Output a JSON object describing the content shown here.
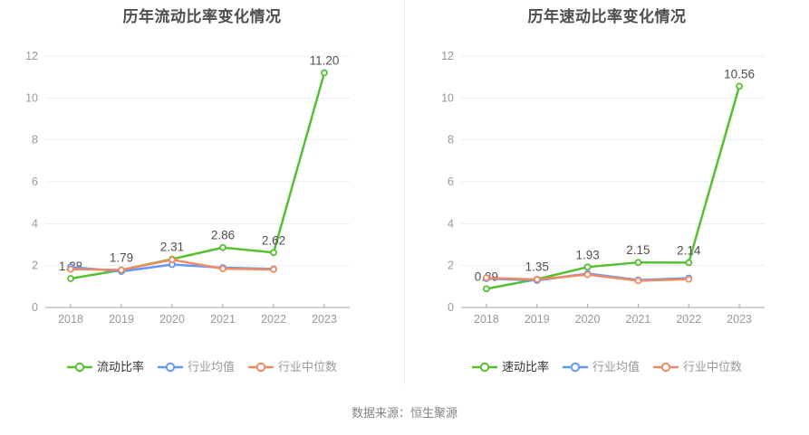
{
  "page": {
    "source_note": "数据来源：恒生聚源"
  },
  "colors": {
    "green": "#55c131",
    "blue": "#6397fa",
    "orange": "#f18a62",
    "gridline": "#e8eef6",
    "axis_line": "#9aa4ae",
    "axis_label": "#999999",
    "title": "#4e4e4e",
    "value_label": "#4f4f4f",
    "legend_active_text": "#333333",
    "legend_muted_text": "#999999",
    "divider": "#ececec",
    "source_text": "#828282"
  },
  "chart_data": [
    {
      "type": "line",
      "title": "历年流动比率变化情况",
      "categories": [
        "2018",
        "2019",
        "2020",
        "2021",
        "2022",
        "2023"
      ],
      "xlabel": "",
      "ylabel": "",
      "ylim": [
        0,
        12
      ],
      "yticks": [
        0,
        2,
        4,
        6,
        8,
        10,
        12
      ],
      "grid": "horizontal-gridlines",
      "legend_position": "bottom",
      "series": [
        {
          "name": "流动比率",
          "color_key": "green",
          "marker": "hollow-circle",
          "values": [
            1.38,
            1.79,
            2.31,
            2.86,
            2.62,
            11.2
          ],
          "point_labels": [
            "1.38",
            "1.79",
            "2.31",
            "2.86",
            "2.62",
            "11.20"
          ],
          "legend_text": "active"
        },
        {
          "name": "行业均值",
          "color_key": "blue",
          "marker": "hollow-circle",
          "values": [
            1.93,
            1.72,
            2.05,
            1.9,
            1.84,
            null
          ],
          "point_labels": null,
          "legend_text": "muted"
        },
        {
          "name": "行业中位数",
          "color_key": "orange",
          "marker": "hollow-circle",
          "values": [
            1.83,
            1.79,
            2.28,
            1.85,
            1.82,
            null
          ],
          "point_labels": null,
          "legend_text": "muted"
        }
      ]
    },
    {
      "type": "line",
      "title": "历年速动比率变化情况",
      "categories": [
        "2018",
        "2019",
        "2020",
        "2021",
        "2022",
        "2023"
      ],
      "xlabel": "",
      "ylabel": "",
      "ylim": [
        0,
        12
      ],
      "yticks": [
        0,
        2,
        4,
        6,
        8,
        10,
        12
      ],
      "grid": "horizontal-gridlines",
      "legend_position": "bottom",
      "series": [
        {
          "name": "速动比率",
          "color_key": "green",
          "marker": "hollow-circle",
          "values": [
            0.89,
            1.35,
            1.93,
            2.15,
            2.14,
            10.56
          ],
          "point_labels": [
            "0.89",
            "1.35",
            "1.93",
            "2.15",
            "2.14",
            "10.56"
          ],
          "legend_text": "active"
        },
        {
          "name": "行业均值",
          "color_key": "blue",
          "marker": "hollow-circle",
          "values": [
            1.38,
            1.29,
            1.62,
            1.31,
            1.4,
            null
          ],
          "point_labels": null,
          "legend_text": "muted"
        },
        {
          "name": "行业中位数",
          "color_key": "orange",
          "marker": "hollow-circle",
          "values": [
            1.41,
            1.34,
            1.57,
            1.28,
            1.35,
            null
          ],
          "point_labels": null,
          "legend_text": "muted"
        }
      ]
    }
  ]
}
